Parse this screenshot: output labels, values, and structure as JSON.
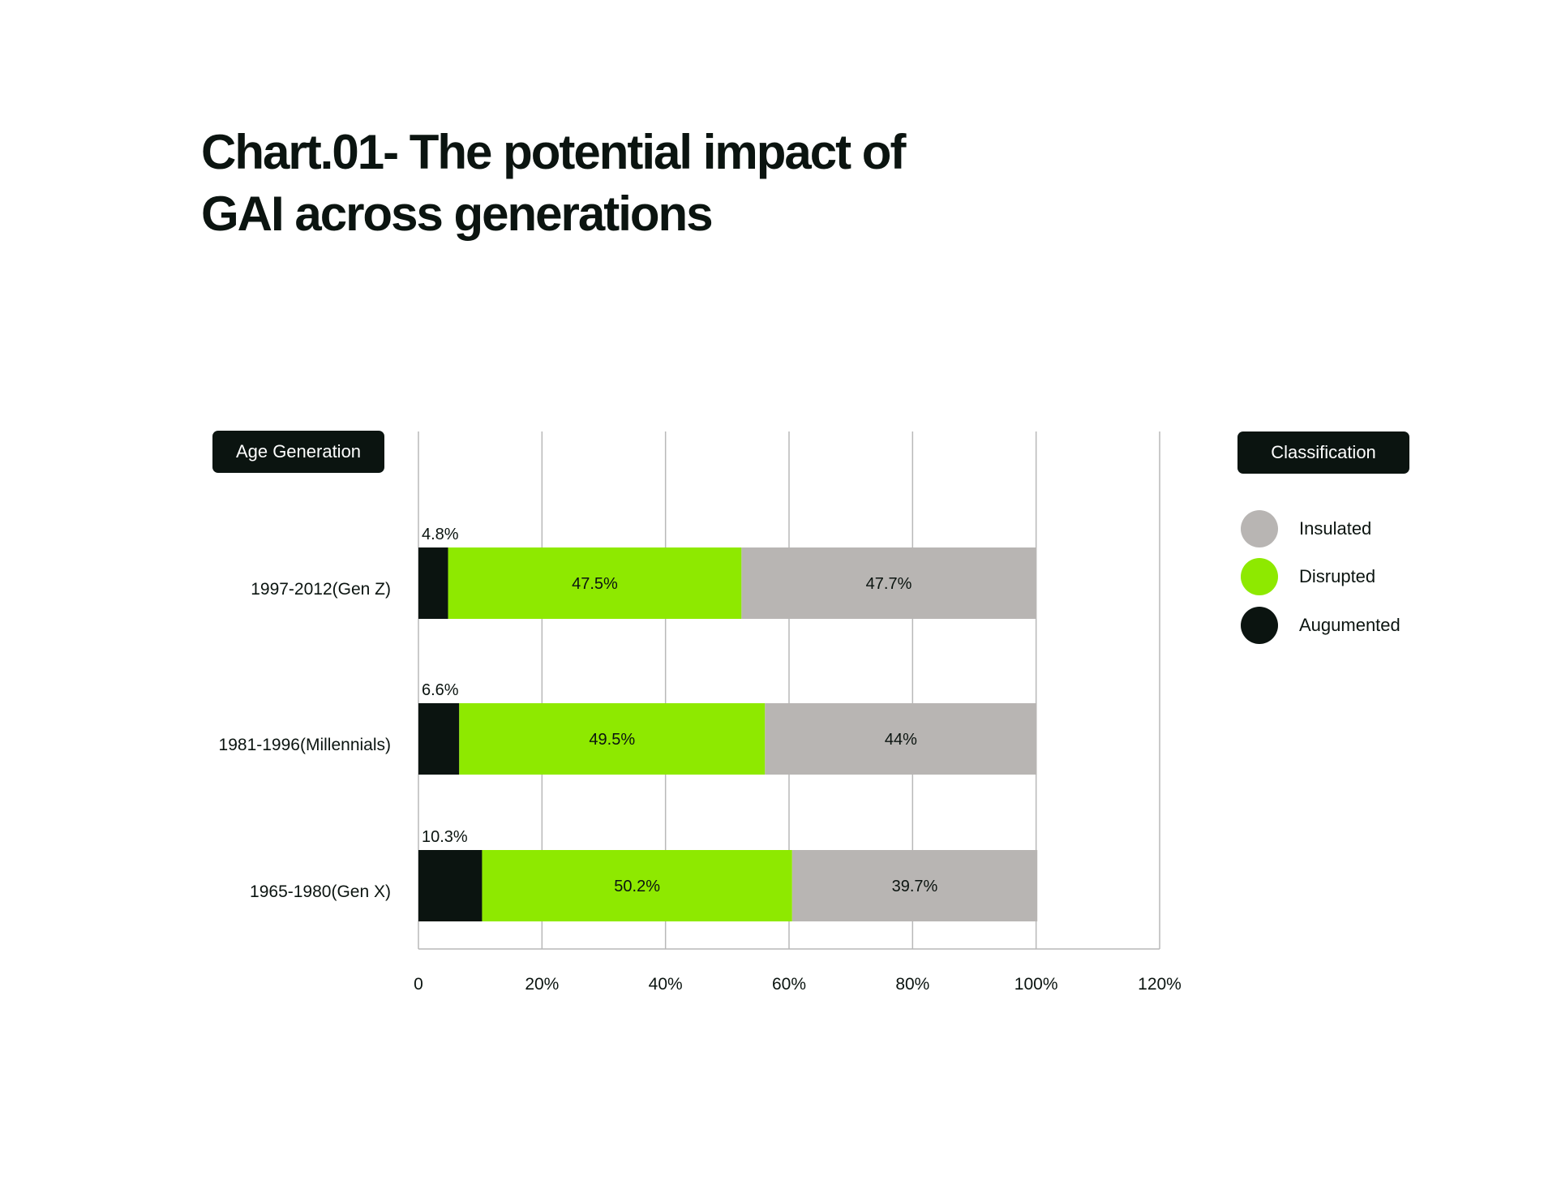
{
  "title_lines": [
    "Chart.01- The potential impact of",
    "GAI across generations"
  ],
  "axis_pill": "Age Generation",
  "legend": {
    "title": "Classification",
    "items": [
      {
        "label": "Insulated",
        "color": "#b8b5b3",
        "icon": "circle-swatch-icon"
      },
      {
        "label": "Disrupted",
        "color": "#8ee900",
        "icon": "circle-swatch-icon"
      },
      {
        "label": "Augumented",
        "color": "#0b1410",
        "icon": "circle-swatch-icon"
      }
    ]
  },
  "chart_data": {
    "type": "bar",
    "orientation": "horizontal",
    "stacked": true,
    "title": "Chart.01- The potential impact of GAI across generations",
    "categories": [
      "1997-2012(Gen Z)",
      "1981-1996(Millennials)",
      "1965-1980(Gen X)"
    ],
    "series": [
      {
        "name": "Augumented",
        "color": "#0b1410",
        "values": [
          4.8,
          6.6,
          10.3
        ],
        "labels": [
          "4.8%",
          "6.6%",
          "10.3%"
        ]
      },
      {
        "name": "Disrupted",
        "color": "#8ee900",
        "values": [
          47.5,
          49.5,
          50.2
        ],
        "labels": [
          "47.5%",
          "49.5%",
          "50.2%"
        ]
      },
      {
        "name": "Insulated",
        "color": "#b8b5b3",
        "values": [
          47.7,
          44,
          39.7
        ],
        "labels": [
          "47.7%",
          "44%",
          "39.7%"
        ]
      }
    ],
    "xlim": [
      0,
      120
    ],
    "xticks": [
      0,
      20,
      40,
      60,
      80,
      100,
      120
    ],
    "xtick_labels": [
      "0",
      "20%",
      "40%",
      "60%",
      "80%",
      "100%",
      "120%"
    ],
    "grid": true,
    "legend_position": "right"
  }
}
